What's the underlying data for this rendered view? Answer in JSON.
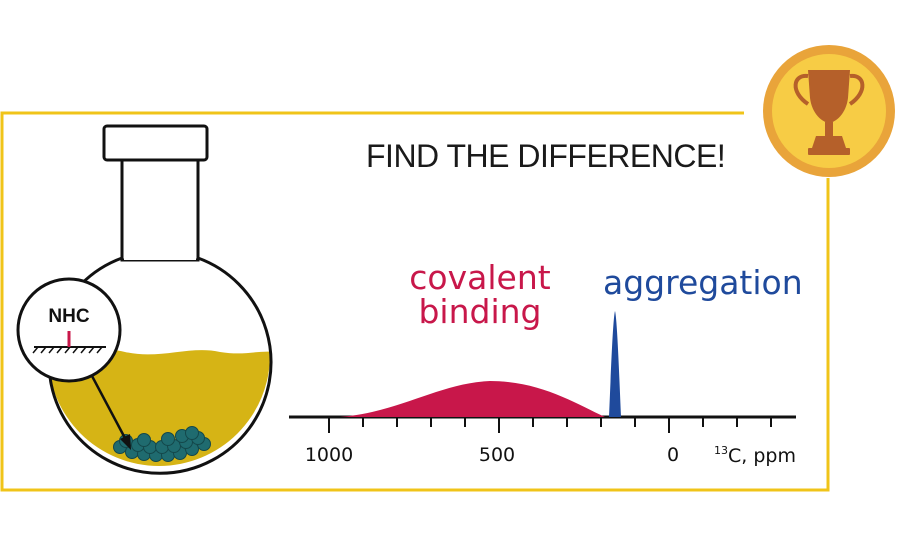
{
  "title": "FIND THE DIFFERENCE!",
  "inset_label": "NHC",
  "labels": {
    "covalent_line1": "covalent",
    "covalent_line2": "binding",
    "aggregation": "aggregation"
  },
  "axis": {
    "ticks": [
      "1000",
      "500",
      "0"
    ],
    "unit_sup": "13",
    "unit_text": "C, ppm"
  },
  "colors": {
    "frame": "#f0c419",
    "liquid": "#d6b415",
    "covalent": "#c8174a",
    "aggregation": "#1f4a9c",
    "particles": "#1f6b6f",
    "badge_outer": "#e9a43a",
    "badge_inner": "#f7cc45",
    "trophy": "#b5602a"
  },
  "icons": [
    "trophy-icon",
    "flask-icon",
    "magnifier-inset-icon"
  ]
}
